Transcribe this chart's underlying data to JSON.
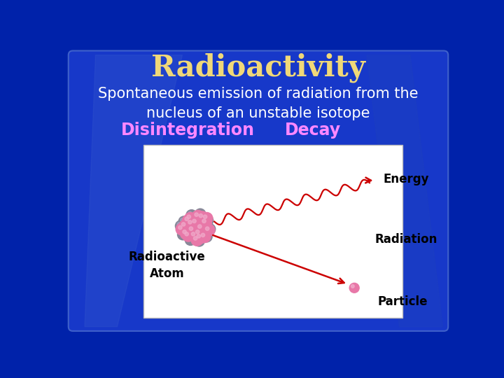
{
  "title": "Radioactivity",
  "title_color": "#F0D878",
  "subtitle": "Spontaneous emission of radiation from the\nnucleus of an unstable isotope",
  "subtitle_color": "#FFFFFF",
  "term1": "Disintegration",
  "term2": "Decay",
  "terms_color": "#FF88FF",
  "bg_dark": "#0022AA",
  "bg_mid": "#1133CC",
  "bg_light": "#2244DD",
  "inner_bg": "#1A3ACC",
  "box_bg": "#FFFFFF",
  "box_edge": "#CCCCCC",
  "arrow_color": "#CC0000",
  "label_energy": "Energy",
  "label_radiation": "Radiation",
  "label_radioactive": "Radioactive\nAtom",
  "label_particle": "Particle",
  "pink_sphere": "#E878A8",
  "pink_sphere_light": "#F0AACA",
  "grey_sphere": "#888898",
  "grey_sphere_light": "#AAAACC",
  "title_fontsize": 30,
  "subtitle_fontsize": 15,
  "terms_fontsize": 17,
  "diag_label_fontsize": 12
}
